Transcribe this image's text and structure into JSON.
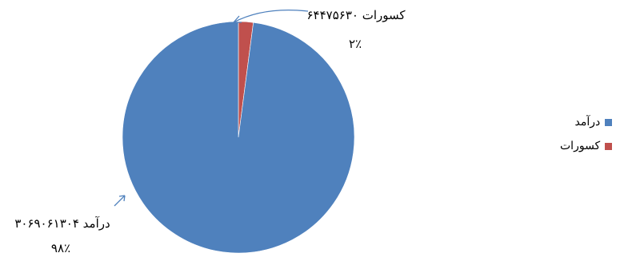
{
  "chart_data": {
    "type": "pie",
    "categories": [
      "درآمد",
      "کسورات"
    ],
    "values": [
      3069061304,
      64475630
    ],
    "percent_labels": [
      "۹۸٪",
      "۲٪"
    ],
    "value_labels": [
      "درآمد ۳۰۶۹۰۶۱۳۰۴",
      "کسورات ۶۴۴۷۵۶۳۰"
    ],
    "colors": [
      "#4F81BD",
      "#C0504D"
    ],
    "legend_position": "right",
    "title": ""
  }
}
